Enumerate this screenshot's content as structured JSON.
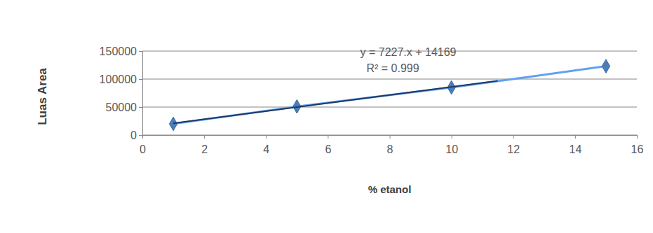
{
  "chart_data": {
    "type": "line",
    "x_label": "% etanol",
    "y_label": "Luas Area",
    "annotations": [
      "y = 7227.x + 14169",
      "R² = 0.999"
    ],
    "x": [
      1,
      5,
      10,
      15
    ],
    "series": [
      {
        "color": "#4a7ebb",
        "marker": "diamond",
        "line_style": "solid",
        "values": [
          20000,
          51000,
          85000,
          123000
        ]
      },
      {
        "color": "#1f3864",
        "marker": "none",
        "line_style": "solid",
        "x": [
          1,
          11.5
        ],
        "values": [
          21000,
          97000
        ]
      }
    ],
    "xlim": [
      0,
      16
    ],
    "xticks": [
      0,
      2,
      4,
      6,
      8,
      10,
      12,
      14,
      16
    ],
    "ylim": [
      0,
      150000
    ],
    "yticks": [
      0,
      50000,
      100000,
      150000
    ],
    "grid": true
  }
}
